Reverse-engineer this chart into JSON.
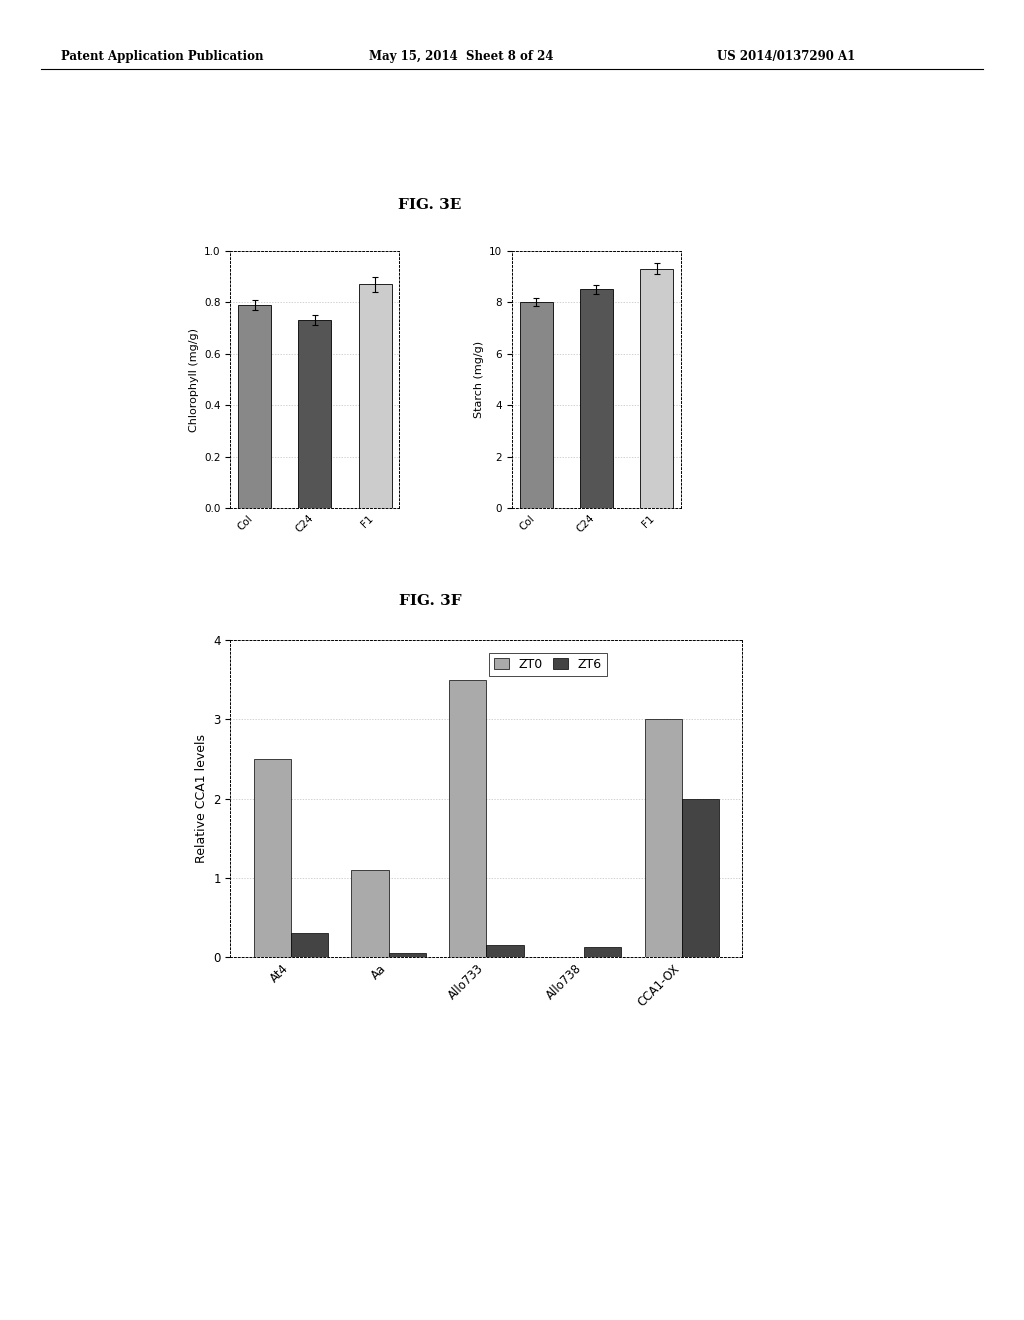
{
  "header_left": "Patent Application Publication",
  "header_mid": "May 15, 2014  Sheet 8 of 24",
  "header_right": "US 2014/0137290 A1",
  "fig3e_label": "FIG. 3E",
  "fig3f_label": "FIG. 3F",
  "chlorophyll": {
    "ylabel": "Chlorophyll (mg/g)",
    "categories": [
      "Col",
      "C24",
      "F1"
    ],
    "values": [
      0.79,
      0.73,
      0.87
    ],
    "errors": [
      0.02,
      0.02,
      0.03
    ],
    "ylim": [
      0,
      1.0
    ],
    "yticks": [
      0,
      0.2,
      0.4,
      0.6,
      0.8,
      1.0
    ],
    "bar_colors": [
      "#888888",
      "#555555",
      "#cccccc"
    ]
  },
  "starch": {
    "ylabel": "Starch (mg/g)",
    "categories": [
      "Col",
      "C24",
      "F1"
    ],
    "values": [
      8.0,
      8.5,
      9.3
    ],
    "errors": [
      0.15,
      0.18,
      0.22
    ],
    "ylim": [
      0,
      10
    ],
    "yticks": [
      0,
      2,
      4,
      6,
      8,
      10
    ],
    "bar_colors": [
      "#888888",
      "#555555",
      "#cccccc"
    ]
  },
  "cca1": {
    "ylabel": "Relative CCA1 levels",
    "categories": [
      "At4",
      "Aa",
      "Allo733",
      "Allo738",
      "CCA1-OX"
    ],
    "zt0_values": [
      2.5,
      1.1,
      3.5,
      0.0,
      3.0
    ],
    "zt6_values": [
      0.3,
      0.05,
      0.15,
      0.12,
      2.0
    ],
    "ylim": [
      0,
      4
    ],
    "yticks": [
      0,
      1,
      2,
      3,
      4
    ],
    "zt0_color": "#aaaaaa",
    "zt6_color": "#444444",
    "legend_zt0": "ZT0",
    "legend_zt6": "ZT6"
  },
  "bg_color": "#ffffff",
  "text_color": "#000000"
}
